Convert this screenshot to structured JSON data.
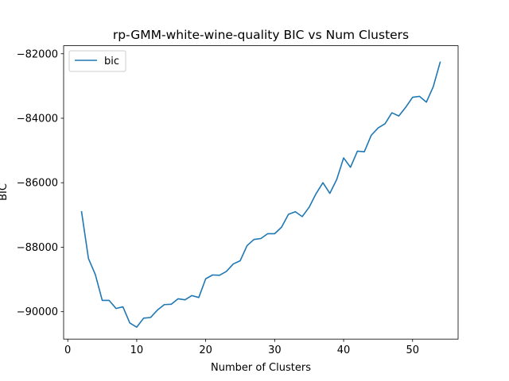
{
  "chart_data": {
    "type": "line",
    "title": "rp-GMM-white-wine-quality BIC vs Num Clusters",
    "xlabel": "Number of Clusters",
    "ylabel": "BIC",
    "xlim": [
      -0.6,
      56.6
    ],
    "ylim": [
      -90850,
      -81750
    ],
    "xticks": [
      0,
      10,
      20,
      30,
      40,
      50
    ],
    "yticks": [
      -90000,
      -88000,
      -86000,
      -84000,
      -82000
    ],
    "ytick_labels": [
      "−90000",
      "−88000",
      "−86000",
      "−84000",
      "−82000"
    ],
    "grid": false,
    "legend_position": "top-left",
    "series": [
      {
        "name": "bic",
        "color": "#1f77b4",
        "x": [
          2,
          3,
          4,
          5,
          6,
          7,
          8,
          9,
          10,
          11,
          12,
          13,
          14,
          15,
          16,
          17,
          18,
          19,
          20,
          21,
          22,
          23,
          24,
          25,
          26,
          27,
          28,
          29,
          30,
          31,
          32,
          33,
          34,
          35,
          36,
          37,
          38,
          39,
          40,
          41,
          42,
          43,
          44,
          45,
          46,
          47,
          48,
          49,
          50,
          51,
          52,
          53,
          54
        ],
        "y": [
          -86900,
          -88350,
          -88850,
          -89650,
          -89650,
          -89900,
          -89850,
          -90350,
          -90480,
          -90200,
          -90180,
          -89950,
          -89780,
          -89770,
          -89600,
          -89630,
          -89500,
          -89560,
          -88980,
          -88860,
          -88870,
          -88750,
          -88520,
          -88420,
          -87950,
          -87760,
          -87730,
          -87580,
          -87580,
          -87380,
          -86980,
          -86900,
          -87050,
          -86760,
          -86340,
          -86000,
          -86330,
          -85900,
          -85230,
          -85520,
          -85020,
          -85040,
          -84530,
          -84300,
          -84170,
          -83830,
          -83930,
          -83660,
          -83350,
          -83320,
          -83500,
          -83020,
          -82260
        ]
      }
    ]
  }
}
